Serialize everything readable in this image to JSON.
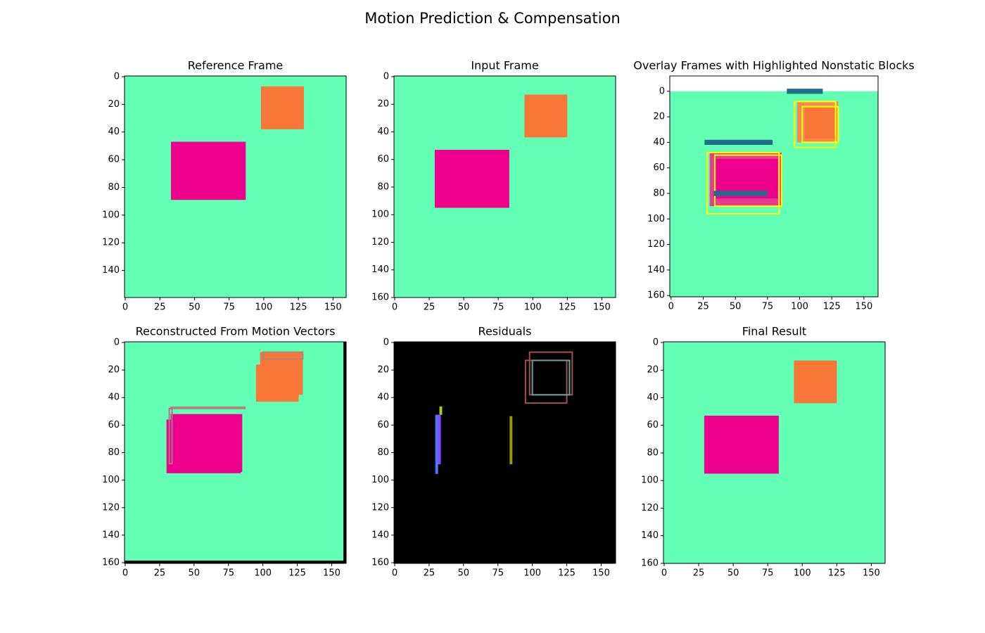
{
  "title": "Motion Prediction & Compensation",
  "chart_data": [
    {
      "type": "image",
      "title": "Reference Frame",
      "xlim": [
        -0.5,
        159.5
      ],
      "ylim": [
        159.5,
        -0.5
      ],
      "xticks": [
        0,
        25,
        50,
        75,
        100,
        125,
        150
      ],
      "yticks": [
        0,
        20,
        40,
        60,
        80,
        100,
        120,
        140
      ],
      "shapes": [
        {
          "x": [
            -0.5,
            159.5
          ],
          "y": [
            -0.5,
            159.5
          ],
          "fill": "#63ffb4"
        },
        {
          "x": [
            98,
            129
          ],
          "y": [
            7,
            38
          ],
          "fill": "#f97639"
        },
        {
          "x": [
            33,
            87
          ],
          "y": [
            47,
            89
          ],
          "fill": "#ec008c"
        }
      ]
    },
    {
      "type": "image",
      "title": "Input Frame",
      "xlim": [
        -0.5,
        160
      ],
      "ylim": [
        160,
        -0.5
      ],
      "xticks": [
        0,
        25,
        50,
        75,
        100,
        125,
        150
      ],
      "yticks": [
        0,
        20,
        40,
        60,
        80,
        100,
        120,
        140,
        160
      ],
      "shapes": [
        {
          "x": [
            -0.5,
            160
          ],
          "y": [
            -0.5,
            160
          ],
          "fill": "#63ffb4"
        },
        {
          "x": [
            94,
            125
          ],
          "y": [
            13,
            44
          ],
          "fill": "#f97639"
        },
        {
          "x": [
            29,
            83
          ],
          "y": [
            53,
            95
          ],
          "fill": "#ec008c"
        }
      ]
    },
    {
      "type": "image",
      "title": "Overlay Frames with Highlighted Nonstatic Blocks",
      "xlim": [
        -1,
        161
      ],
      "ylim": [
        161,
        -12
      ],
      "xticks": [
        0,
        25,
        50,
        75,
        100,
        125,
        150
      ],
      "yticks": [
        0,
        20,
        40,
        60,
        80,
        100,
        120,
        140,
        160
      ],
      "shapes": [
        {
          "x": [
            -1,
            161
          ],
          "y": [
            0,
            161
          ],
          "fill": "#63ffb4"
        },
        {
          "x": [
            98,
            130
          ],
          "y": [
            8,
            40
          ],
          "fill": "#f48a52"
        },
        {
          "x": [
            104,
            127
          ],
          "y": [
            13,
            37
          ],
          "fill": "#f97639"
        },
        {
          "x": [
            30,
            86
          ],
          "y": [
            48,
            90
          ],
          "fill": "#e83a8e"
        },
        {
          "x": [
            35,
            83
          ],
          "y": [
            53,
            84
          ],
          "fill": "#ec008c"
        },
        {
          "x": [
            96,
            128
          ],
          "y": [
            8,
            44
          ],
          "stroke": "#ffff00"
        },
        {
          "x": [
            102,
            130
          ],
          "y": [
            12,
            40
          ],
          "stroke": "#ffff00"
        },
        {
          "x": [
            28,
            84
          ],
          "y": [
            48,
            96
          ],
          "stroke": "#ffff00"
        },
        {
          "x": [
            34,
            86
          ],
          "y": [
            50,
            90
          ],
          "stroke": "#ffff00"
        },
        {
          "x": [
            26,
            79
          ],
          "y": [
            38,
            42
          ],
          "fill": "#1f6f8b"
        },
        {
          "x": [
            90,
            118
          ],
          "y": [
            -2,
            2
          ],
          "fill": "#1f6f8b"
        },
        {
          "x": [
            33,
            75
          ],
          "y": [
            78,
            82
          ],
          "fill": "#1f6f8b"
        }
      ]
    },
    {
      "type": "image",
      "title": "Reconstructed From Motion Vectors",
      "xlim": [
        -0.5,
        160.5
      ],
      "ylim": [
        160.5,
        -0.5
      ],
      "xticks": [
        0,
        25,
        50,
        75,
        100,
        125,
        150
      ],
      "yticks": [
        0,
        20,
        40,
        60,
        80,
        100,
        120,
        140,
        160
      ],
      "shapes": [
        {
          "x": [
            -0.5,
            160.5
          ],
          "y": [
            -0.5,
            160.5
          ],
          "fill": "#63ffb4"
        },
        {
          "x": [
            158.5,
            160.5
          ],
          "y": [
            -0.5,
            160.5
          ],
          "fill": "#000000"
        },
        {
          "x": [
            -0.5,
            160.5
          ],
          "y": [
            158.5,
            160.5
          ],
          "fill": "#000000"
        },
        {
          "x": [
            95,
            126
          ],
          "y": [
            16,
            43
          ],
          "fill": "#f97639"
        },
        {
          "x": [
            98,
            129
          ],
          "y": [
            7,
            38
          ],
          "fill": "#f97639"
        },
        {
          "x": [
            100,
            129
          ],
          "y": [
            7,
            12
          ],
          "stroke": "#a88a7a"
        },
        {
          "x": [
            30,
            84
          ],
          "y": [
            56,
            95
          ],
          "fill": "#ec008c"
        },
        {
          "x": [
            33,
            85
          ],
          "y": [
            52,
            94
          ],
          "fill": "#ec008c"
        },
        {
          "x": [
            33,
            87
          ],
          "y": [
            47,
            48
          ],
          "stroke": "#a88a7a"
        },
        {
          "x": [
            32,
            34
          ],
          "y": [
            48,
            88
          ],
          "stroke": "#b07090"
        }
      ]
    },
    {
      "type": "image",
      "title": "Residuals",
      "xlim": [
        -0.5,
        160.5
      ],
      "ylim": [
        160.5,
        -0.5
      ],
      "xticks": [
        0,
        25,
        50,
        75,
        100,
        125,
        150
      ],
      "yticks": [
        0,
        20,
        40,
        60,
        80,
        100,
        120,
        140,
        160
      ],
      "shapes": [
        {
          "x": [
            -0.5,
            160.5
          ],
          "y": [
            -0.5,
            160.5
          ],
          "fill": "#000000"
        },
        {
          "x": [
            98,
            129
          ],
          "y": [
            7,
            38
          ],
          "stroke": "#a05050"
        },
        {
          "x": [
            95,
            125
          ],
          "y": [
            13,
            44
          ],
          "stroke": "#a05050"
        },
        {
          "x": [
            100,
            127
          ],
          "y": [
            13,
            38
          ],
          "stroke": "#6aa0a0"
        },
        {
          "x": [
            33,
            87
          ],
          "y": [
            47,
            47
          ],
          "stroke": "#b0701a"
        },
        {
          "x": [
            33,
            83
          ],
          "y": [
            52,
            52
          ],
          "stroke": "#a0d01a"
        },
        {
          "x": [
            33,
            34
          ],
          "y": [
            47,
            52
          ],
          "stroke": "#a0d01a"
        },
        {
          "x": [
            30,
            31
          ],
          "y": [
            53,
            95
          ],
          "stroke": "#4a78ff"
        },
        {
          "x": [
            32,
            33
          ],
          "y": [
            53,
            88
          ],
          "stroke": "#8a4aff"
        },
        {
          "x": [
            84,
            85
          ],
          "y": [
            54,
            88
          ],
          "stroke": "#909a10"
        }
      ]
    },
    {
      "type": "image",
      "title": "Final Result",
      "xlim": [
        -0.5,
        160
      ],
      "ylim": [
        160,
        -0.5
      ],
      "xticks": [
        0,
        25,
        50,
        75,
        100,
        125,
        150
      ],
      "yticks": [
        0,
        20,
        40,
        60,
        80,
        100,
        120,
        140,
        160
      ],
      "shapes": [
        {
          "x": [
            -0.5,
            160
          ],
          "y": [
            -0.5,
            160
          ],
          "fill": "#63ffb4"
        },
        {
          "x": [
            94,
            125
          ],
          "y": [
            13,
            44
          ],
          "fill": "#f97639"
        },
        {
          "x": [
            29,
            83
          ],
          "y": [
            53,
            95
          ],
          "fill": "#ec008c"
        }
      ]
    }
  ]
}
